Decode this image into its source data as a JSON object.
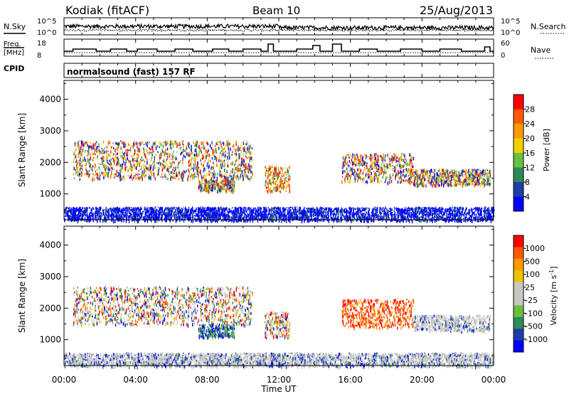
{
  "header": {
    "radar": "Kodiak (fitACF)",
    "beam": "Beam 10",
    "date": "25/Aug/2013"
  },
  "noise_panel": {
    "left_label": "N.Sky",
    "right_label": "N.Search",
    "left_ticks": [
      "10^5",
      "10^0"
    ],
    "right_ticks": [
      "10^5",
      "10^0"
    ]
  },
  "freq_panel": {
    "left_label_1": "Freq.",
    "left_label_2": "[MHz]",
    "right_label": "Nave",
    "left_ticks": [
      "18",
      "8"
    ],
    "right_ticks": [
      "60",
      "0"
    ]
  },
  "cpid": {
    "label": "CPID",
    "value": "normalsound (fast) 157 RF"
  },
  "x_axis": {
    "label": "Time UT",
    "ticks": [
      "00:00",
      "04:00",
      "08:00",
      "12:00",
      "16:00",
      "20:00",
      "00:00"
    ]
  },
  "colors": {
    "power": [
      "#0000ff",
      "#1a3fa8",
      "#2e8b57",
      "#6abf40",
      "#f0d000",
      "#ff9900",
      "#ff5a00",
      "#ff0000"
    ],
    "velocity": [
      "#ff0000",
      "#ff5a00",
      "#ff9900",
      "#f0c000",
      "#c8c8c0",
      "#c8c8c0",
      "#6abf40",
      "#2e8b57",
      "#1a3fa8",
      "#0000ff"
    ]
  },
  "chart_data": [
    {
      "type": "heatmap",
      "title": "Power",
      "xlabel": "Time UT",
      "ylabel": "Slant Range [km]",
      "y_ticks": [
        1000,
        2000,
        3000,
        4000
      ],
      "x_range_hours": [
        0,
        24
      ],
      "ylim": [
        180,
        4600
      ],
      "colorbar": {
        "label": "Power [dB]",
        "ticks": [
          "28",
          "24",
          "20",
          "16",
          "12",
          "8",
          "4"
        ]
      },
      "scatter_regions": [
        {
          "t": [
            0.5,
            10.5
          ],
          "r": [
            1500,
            2700
          ],
          "value": "mixed"
        },
        {
          "t": [
            7.5,
            9.5
          ],
          "r": [
            1100,
            1500
          ],
          "value": "mixed"
        },
        {
          "t": [
            11.2,
            12.6
          ],
          "r": [
            1100,
            1900
          ],
          "value": "high"
        },
        {
          "t": [
            15.5,
            19.5
          ],
          "r": [
            1400,
            2300
          ],
          "value": "mixed"
        },
        {
          "t": [
            19.5,
            23.8
          ],
          "r": [
            1300,
            1800
          ],
          "value": "mixed"
        },
        {
          "t": [
            0,
            24
          ],
          "r": [
            180,
            600
          ],
          "value": "low"
        }
      ]
    },
    {
      "type": "heatmap",
      "title": "Velocity",
      "xlabel": "Time UT",
      "ylabel": "Slant Range [km]",
      "y_ticks": [
        1000,
        2000,
        3000,
        4000
      ],
      "x_range_hours": [
        0,
        24
      ],
      "ylim": [
        180,
        4600
      ],
      "colorbar": {
        "label": "Velocity [m s-1]",
        "ticks": [
          "1000",
          "500",
          "100",
          "25",
          "-25",
          "-100",
          "-500",
          "-1000"
        ]
      },
      "scatter_regions": [
        {
          "t": [
            0.5,
            10.5
          ],
          "r": [
            1500,
            2700
          ],
          "value": "mixed"
        },
        {
          "t": [
            7.5,
            9.5
          ],
          "r": [
            1100,
            1500
          ],
          "value": "positive"
        },
        {
          "t": [
            11.2,
            12.6
          ],
          "r": [
            1100,
            1900
          ],
          "value": "mixed"
        },
        {
          "t": [
            15.5,
            19.5
          ],
          "r": [
            1400,
            2300
          ],
          "value": "negative"
        },
        {
          "t": [
            19.5,
            23.8
          ],
          "r": [
            1300,
            1800
          ],
          "value": "ground"
        },
        {
          "t": [
            0,
            24
          ],
          "r": [
            180,
            600
          ],
          "value": "ground"
        }
      ]
    }
  ]
}
